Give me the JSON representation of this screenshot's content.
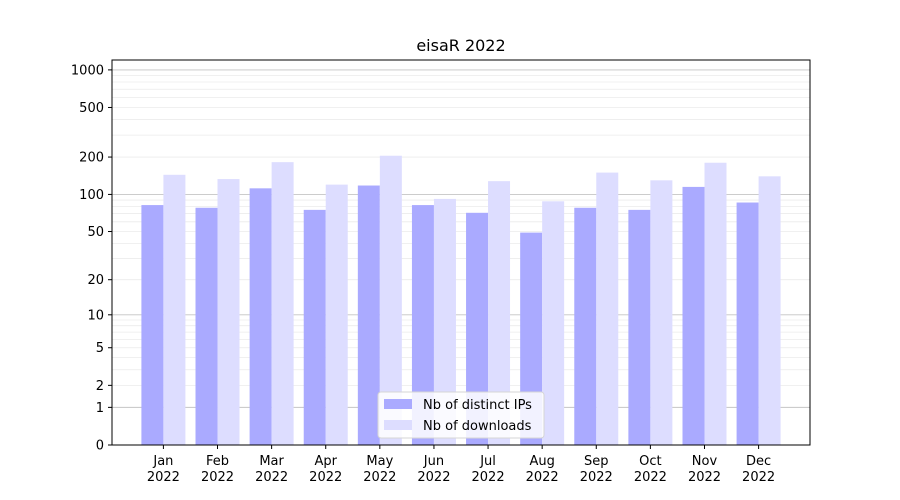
{
  "chart_data": {
    "type": "bar",
    "title": "eisaR 2022",
    "xlabel": "",
    "ylabel": "",
    "yscale": "log1p",
    "ylim": [
      0,
      1200
    ],
    "yticks": [
      0,
      1,
      2,
      5,
      10,
      20,
      50,
      100,
      200,
      500,
      1000
    ],
    "ytick_labels": [
      "0",
      "1",
      "2",
      "5",
      "10",
      "20",
      "50",
      "100",
      "200",
      "500",
      "1000"
    ],
    "categories": [
      "Jan\n2022",
      "Feb\n2022",
      "Mar\n2022",
      "Apr\n2022",
      "May\n2022",
      "Jun\n2022",
      "Jul\n2022",
      "Aug\n2022",
      "Sep\n2022",
      "Oct\n2022",
      "Nov\n2022",
      "Dec\n2022"
    ],
    "series": [
      {
        "name": "Nb of distinct IPs",
        "color": "#aaaaff",
        "values": [
          82,
          78,
          112,
          75,
          118,
          82,
          71,
          49,
          78,
          75,
          115,
          86
        ]
      },
      {
        "name": "Nb of downloads",
        "color": "#ddddff",
        "values": [
          144,
          133,
          182,
          120,
          205,
          92,
          128,
          88,
          150,
          130,
          180,
          140
        ]
      }
    ],
    "grid": true,
    "legend_position": "lower-center"
  }
}
